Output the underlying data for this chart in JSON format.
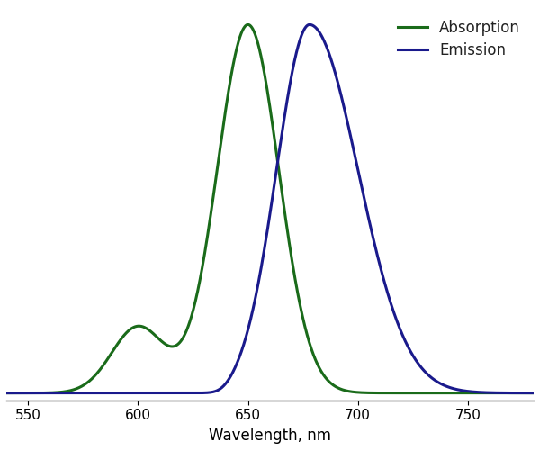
{
  "xlabel": "Wavelength, nm",
  "xlim": [
    540,
    780
  ],
  "ylim": [
    -0.02,
    1.05
  ],
  "xticks": [
    550,
    600,
    650,
    700,
    750
  ],
  "absorption_color": "#1a6b1a",
  "emission_color": "#1a1a8c",
  "absorption_label": "Absorption",
  "emission_label": "Emission",
  "line_width": 2.2,
  "background_color": "#ffffff",
  "grid_color": "#ccccdd",
  "legend_fontsize": 12,
  "axis_fontsize": 12,
  "tick_fontsize": 11
}
